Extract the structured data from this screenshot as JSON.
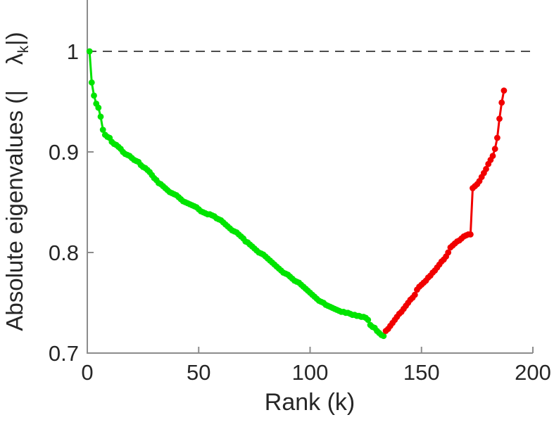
{
  "figure": {
    "xlabel": "Rank (k)",
    "ylabel": {
      "prefix": "Absolute eigenvalues (|",
      "symbol": "λ",
      "subscript": "k",
      "suffix": "|)"
    }
  },
  "chart_data": {
    "type": "line",
    "title": "",
    "xlabel": "Rank (k)",
    "ylabel": "Absolute eigenvalues (|lambda_k|)",
    "xlim": [
      0,
      200
    ],
    "ylim": [
      0.7,
      1.0
    ],
    "xticks": [
      "0",
      "50",
      "100",
      "150",
      "200"
    ],
    "yticks": [
      "0.7",
      "0.8",
      "0.9",
      "1"
    ],
    "grid": false,
    "legend": "none",
    "marker": "circle",
    "axis_color": "#8c8c8c",
    "text_color": "#262626",
    "reference_line": {
      "y": 1,
      "style": "dashed",
      "color": "#4d4d4d"
    },
    "series": [
      {
        "name": "descending-eigenvalues-green",
        "color": "#00e400",
        "k_start": 1,
        "values": [
          1.0,
          0.969,
          0.956,
          0.948,
          0.944,
          0.935,
          0.922,
          0.917,
          0.915,
          0.914,
          0.91,
          0.908,
          0.907,
          0.905,
          0.903,
          0.9,
          0.898,
          0.897,
          0.896,
          0.894,
          0.892,
          0.891,
          0.89,
          0.887,
          0.885,
          0.884,
          0.882,
          0.88,
          0.877,
          0.874,
          0.872,
          0.869,
          0.868,
          0.866,
          0.864,
          0.862,
          0.86,
          0.859,
          0.858,
          0.857,
          0.855,
          0.853,
          0.851,
          0.85,
          0.849,
          0.848,
          0.847,
          0.846,
          0.845,
          0.843,
          0.841,
          0.84,
          0.839,
          0.838,
          0.838,
          0.837,
          0.836,
          0.834,
          0.833,
          0.832,
          0.83,
          0.828,
          0.826,
          0.824,
          0.822,
          0.821,
          0.82,
          0.818,
          0.816,
          0.814,
          0.811,
          0.81,
          0.808,
          0.806,
          0.804,
          0.802,
          0.8,
          0.799,
          0.798,
          0.796,
          0.794,
          0.792,
          0.79,
          0.788,
          0.786,
          0.784,
          0.782,
          0.78,
          0.779,
          0.778,
          0.776,
          0.774,
          0.772,
          0.771,
          0.77,
          0.768,
          0.766,
          0.764,
          0.762,
          0.76,
          0.758,
          0.756,
          0.754,
          0.752,
          0.751,
          0.75,
          0.748,
          0.747,
          0.746,
          0.745,
          0.744,
          0.743,
          0.742,
          0.741,
          0.741,
          0.74,
          0.74,
          0.739,
          0.738,
          0.738,
          0.737,
          0.737,
          0.736,
          0.736,
          0.735,
          0.733,
          0.728,
          0.726,
          0.725,
          0.722,
          0.72,
          0.718,
          0.717
        ]
      },
      {
        "name": "ascending-eigenvalues-red",
        "color": "#f10000",
        "k_start": 134,
        "values": [
          0.722,
          0.724,
          0.727,
          0.73,
          0.733,
          0.736,
          0.739,
          0.741,
          0.744,
          0.747,
          0.75,
          0.753,
          0.755,
          0.758,
          0.763,
          0.766,
          0.768,
          0.77,
          0.772,
          0.775,
          0.777,
          0.78,
          0.782,
          0.785,
          0.788,
          0.791,
          0.793,
          0.796,
          0.8,
          0.805,
          0.807,
          0.809,
          0.811,
          0.812,
          0.814,
          0.816,
          0.817,
          0.818,
          0.818,
          0.864,
          0.866,
          0.868,
          0.871,
          0.875,
          0.879,
          0.883,
          0.888,
          0.892,
          0.896,
          0.903,
          0.914,
          0.933,
          0.949,
          0.961
        ]
      }
    ]
  }
}
